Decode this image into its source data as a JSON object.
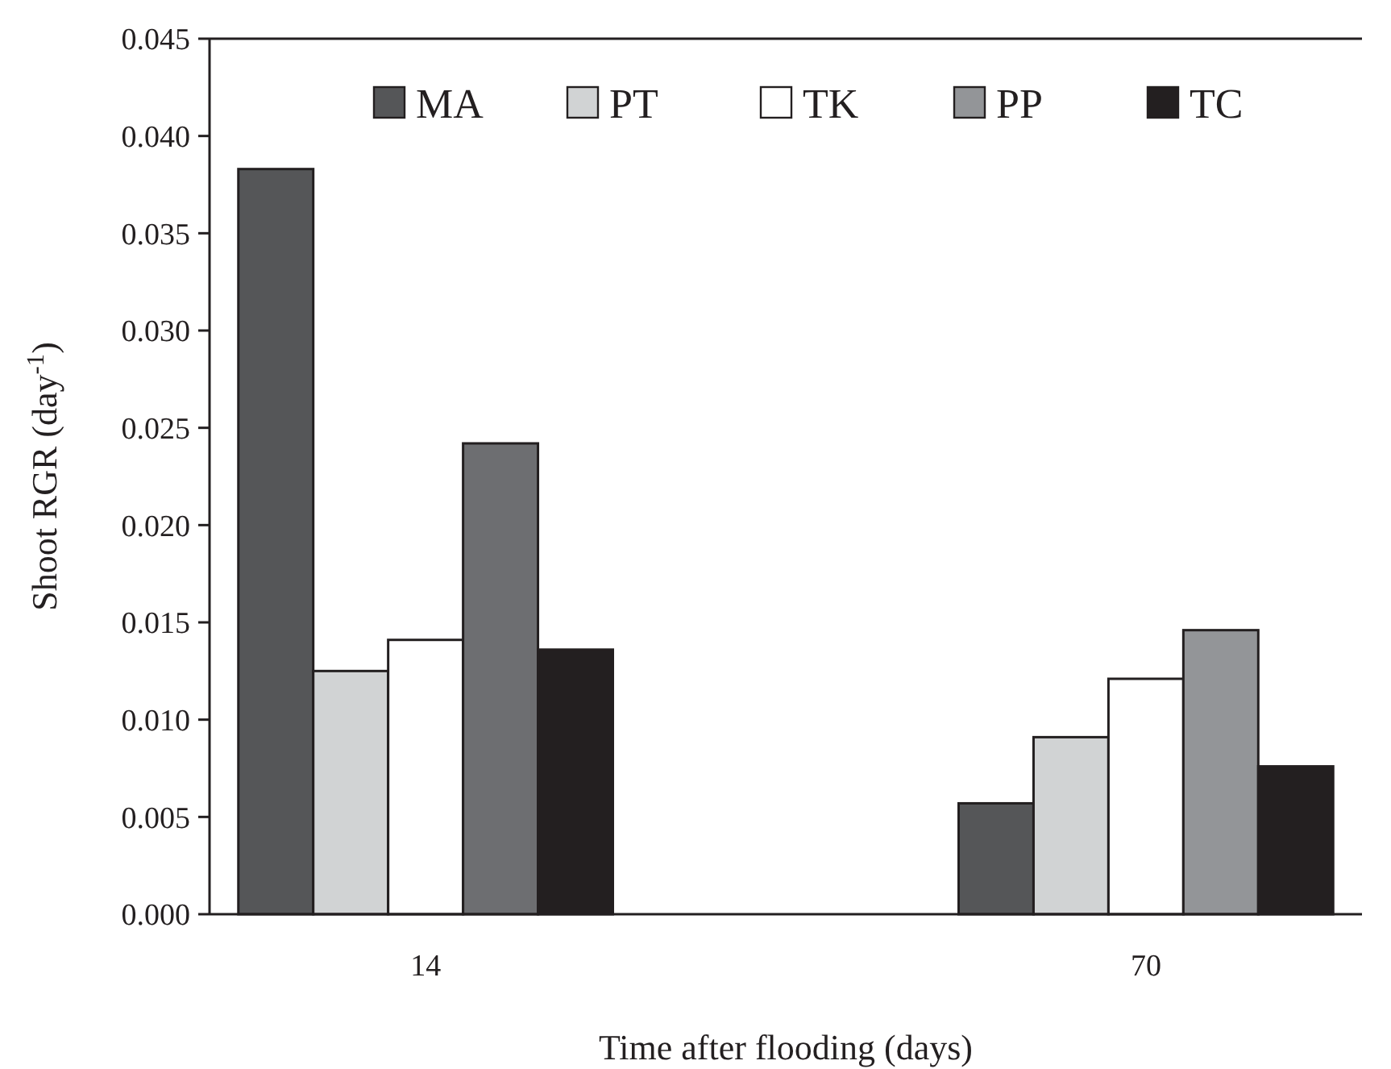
{
  "chart_data": {
    "type": "bar",
    "xlabel": "Time after flooding (days)",
    "ylabel": "Shoot RGR (day$^{-1}$)",
    "categories": [
      "14",
      "70"
    ],
    "series": [
      {
        "name": "MA",
        "color": "#555658",
        "values": [
          0.0383,
          0.0057
        ]
      },
      {
        "name": "PT",
        "color": "#d1d3d4",
        "values": [
          0.0125,
          0.0091
        ]
      },
      {
        "name": "TK",
        "color": "#ffffff",
        "values": [
          0.0141,
          0.0121
        ]
      },
      {
        "name": "PP",
        "color": "#939598",
        "colors": [
          "#6d6e71",
          "#939598"
        ],
        "values": [
          0.0242,
          0.0146
        ]
      },
      {
        "name": "TC",
        "color": "#231f20",
        "values": [
          0.0136,
          0.0076
        ]
      }
    ],
    "ylim": [
      0,
      0.045
    ],
    "yticks": [
      {
        "value": 0,
        "label": "0.000"
      },
      0.005,
      {
        "value": 0.01,
        "label": "0.010"
      },
      0.015,
      {
        "value": 0.02,
        "label": "0.020"
      },
      0.025,
      {
        "value": 0.03,
        "label": "0.030"
      },
      0.035,
      {
        "value": 0.04,
        "label": "0.040"
      },
      0.045
    ],
    "legend": "top",
    "grid": false
  }
}
